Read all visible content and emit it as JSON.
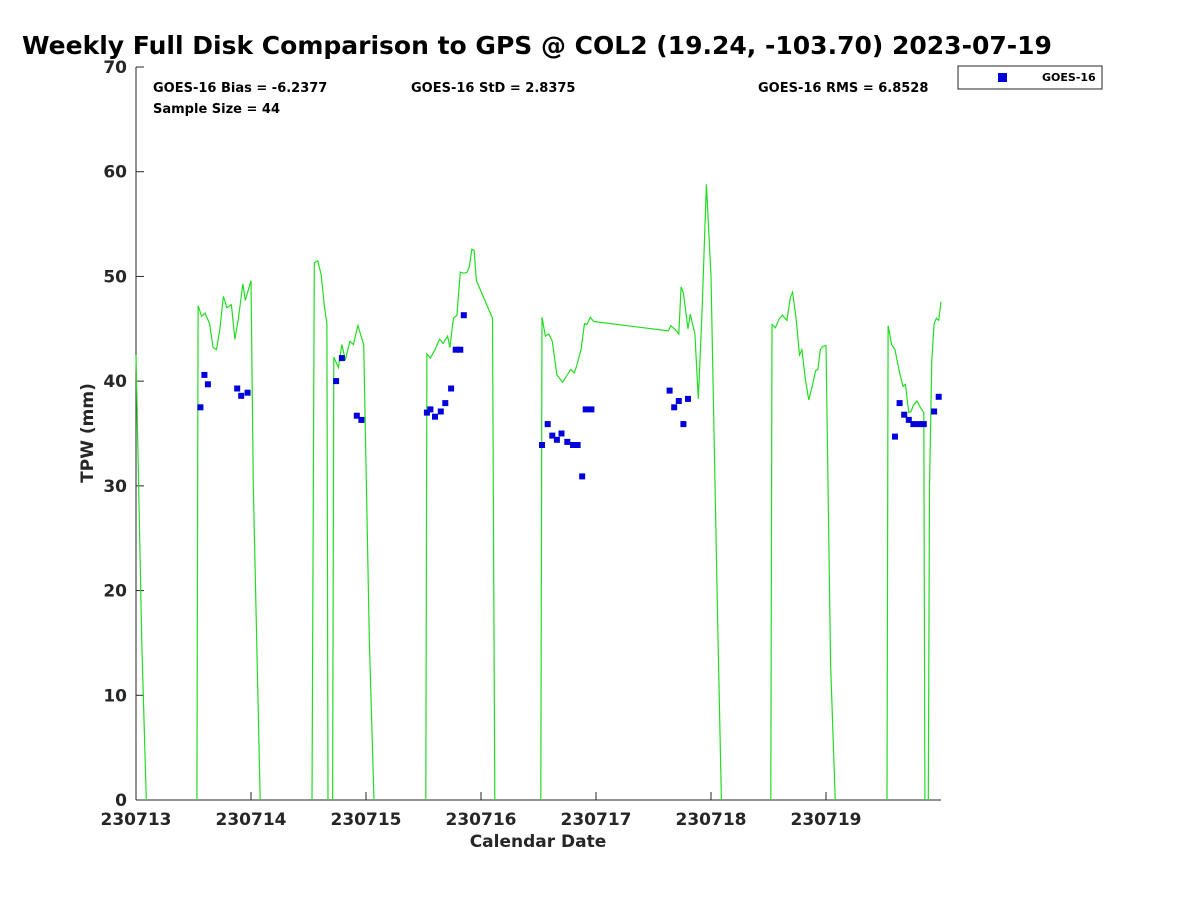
{
  "chart_data": {
    "type": "scatter",
    "title": "Weekly Full Disk Comparison to GPS @ COL2 (19.24, -103.70) 2023-07-19",
    "xlabel": "Calendar Date",
    "ylabel": "TPW (mm)",
    "xlim": [
      "230713",
      "230720"
    ],
    "ylim": [
      0,
      70
    ],
    "yticks": [
      0,
      10,
      20,
      30,
      40,
      50,
      60,
      70
    ],
    "xtick_labels": [
      "230713",
      "230714",
      "230715",
      "230716",
      "230717",
      "230718",
      "230719"
    ],
    "grid": false,
    "legend": {
      "placement": "top-right outside",
      "entries": [
        "GOES-16"
      ]
    },
    "stats": {
      "bias": "GOES-16 Bias = -6.2377",
      "std": "GOES-16 StD = 2.8375",
      "rms": "GOES-16 RMS = 6.8528",
      "sample": "Sample Size = 44"
    },
    "colors": {
      "goes": "#0000dd",
      "gps": "#22dd22"
    },
    "series": [
      {
        "name": "GOES-16",
        "kind": "markers",
        "points": [
          [
            0.56,
            37.5
          ],
          [
            0.595,
            40.6
          ],
          [
            0.625,
            39.7
          ],
          [
            0.88,
            39.3
          ],
          [
            0.915,
            38.6
          ],
          [
            0.97,
            38.9
          ],
          [
            1.74,
            40.0
          ],
          [
            1.79,
            42.2
          ],
          [
            1.92,
            36.7
          ],
          [
            1.96,
            36.3
          ],
          [
            2.53,
            37.0
          ],
          [
            2.56,
            37.3
          ],
          [
            2.6,
            36.6
          ],
          [
            2.65,
            37.1
          ],
          [
            2.69,
            37.9
          ],
          [
            2.74,
            39.3
          ],
          [
            2.78,
            43.0
          ],
          [
            2.82,
            43.0
          ],
          [
            2.85,
            46.3
          ],
          [
            3.53,
            33.9
          ],
          [
            3.58,
            35.9
          ],
          [
            3.62,
            34.8
          ],
          [
            3.66,
            34.4
          ],
          [
            3.7,
            35.0
          ],
          [
            3.75,
            34.2
          ],
          [
            3.8,
            33.9
          ],
          [
            3.84,
            33.9
          ],
          [
            3.88,
            30.9
          ],
          [
            3.91,
            37.3
          ],
          [
            3.96,
            37.3
          ],
          [
            4.64,
            39.1
          ],
          [
            4.68,
            37.5
          ],
          [
            4.72,
            38.1
          ],
          [
            4.76,
            35.9
          ],
          [
            4.8,
            38.3
          ],
          [
            6.6,
            34.7
          ],
          [
            6.64,
            37.9
          ],
          [
            6.68,
            36.8
          ],
          [
            6.72,
            36.3
          ],
          [
            6.76,
            35.9
          ],
          [
            6.81,
            35.9
          ],
          [
            6.85,
            35.9
          ],
          [
            6.94,
            37.1
          ],
          [
            6.98,
            38.5
          ]
        ]
      },
      {
        "name": "GPS",
        "kind": "line",
        "segments": [
          [
            [
              0.0,
              42.5
            ],
            [
              0.05,
              15.0
            ],
            [
              0.09,
              0.0
            ]
          ],
          [
            [
              0.53,
              0.0
            ],
            [
              0.54,
              47.2
            ],
            [
              0.57,
              46.2
            ],
            [
              0.6,
              46.5
            ],
            [
              0.64,
              45.5
            ],
            [
              0.67,
              43.2
            ],
            [
              0.7,
              43.0
            ],
            [
              0.73,
              45.0
            ],
            [
              0.76,
              48.1
            ],
            [
              0.79,
              47.0
            ],
            [
              0.83,
              47.3
            ],
            [
              0.86,
              44.0
            ],
            [
              0.89,
              46.0
            ],
            [
              0.93,
              49.3
            ],
            [
              0.95,
              47.7
            ],
            [
              1.0,
              49.6
            ],
            [
              1.02,
              30.0
            ],
            [
              1.08,
              0.0
            ]
          ],
          [
            [
              1.53,
              0.0
            ],
            [
              1.55,
              51.3
            ],
            [
              1.58,
              51.5
            ],
            [
              1.61,
              50.2
            ],
            [
              1.64,
              47.0
            ],
            [
              1.66,
              45.5
            ],
            [
              1.67,
              0.0
            ]
          ],
          [
            [
              1.71,
              0.0
            ],
            [
              1.72,
              42.3
            ],
            [
              1.76,
              41.3
            ],
            [
              1.79,
              43.5
            ],
            [
              1.82,
              42.0
            ],
            [
              1.86,
              43.8
            ],
            [
              1.89,
              43.5
            ],
            [
              1.93,
              45.3
            ],
            [
              1.96,
              44.2
            ],
            [
              1.98,
              43.5
            ],
            [
              2.03,
              15.0
            ],
            [
              2.07,
              0.0
            ]
          ],
          [
            [
              2.52,
              0.0
            ],
            [
              2.53,
              42.6
            ],
            [
              2.56,
              42.2
            ],
            [
              2.6,
              43.0
            ],
            [
              2.64,
              44.0
            ],
            [
              2.67,
              43.6
            ],
            [
              2.71,
              44.3
            ],
            [
              2.73,
              43.2
            ],
            [
              2.76,
              46.0
            ],
            [
              2.79,
              46.3
            ],
            [
              2.82,
              50.4
            ],
            [
              2.85,
              50.3
            ],
            [
              2.88,
              50.4
            ],
            [
              2.9,
              51.0
            ],
            [
              2.92,
              52.6
            ],
            [
              2.94,
              52.5
            ],
            [
              2.96,
              49.6
            ],
            [
              3.1,
              46.0
            ],
            [
              3.12,
              0.0
            ]
          ],
          [
            [
              3.52,
              0.0
            ],
            [
              3.53,
              46.1
            ],
            [
              3.56,
              44.3
            ],
            [
              3.59,
              44.5
            ],
            [
              3.62,
              43.8
            ],
            [
              3.66,
              40.6
            ],
            [
              3.71,
              39.9
            ],
            [
              3.75,
              40.6
            ],
            [
              3.78,
              41.1
            ],
            [
              3.81,
              40.8
            ],
            [
              3.83,
              41.4
            ],
            [
              3.87,
              43.0
            ],
            [
              3.9,
              45.5
            ],
            [
              3.92,
              45.4
            ],
            [
              3.95,
              46.1
            ],
            [
              3.98,
              45.7
            ],
            [
              4.63,
              44.8
            ],
            [
              4.65,
              45.3
            ],
            [
              4.7,
              44.8
            ],
            [
              4.72,
              44.5
            ],
            [
              4.74,
              49.0
            ],
            [
              4.76,
              48.4
            ],
            [
              4.8,
              45.0
            ],
            [
              4.82,
              46.4
            ],
            [
              4.86,
              44.5
            ],
            [
              4.89,
              38.3
            ],
            [
              4.92,
              46.0
            ],
            [
              4.96,
              58.8
            ],
            [
              5.0,
              50.0
            ],
            [
              5.06,
              16.0
            ],
            [
              5.09,
              0.0
            ]
          ],
          [
            [
              5.52,
              0.0
            ],
            [
              5.53,
              45.4
            ],
            [
              5.56,
              45.1
            ],
            [
              5.59,
              45.9
            ],
            [
              5.62,
              46.3
            ],
            [
              5.66,
              45.8
            ],
            [
              5.69,
              48.0
            ],
            [
              5.71,
              48.5
            ],
            [
              5.74,
              46.0
            ],
            [
              5.77,
              42.5
            ],
            [
              5.79,
              43.0
            ],
            [
              5.82,
              40.2
            ],
            [
              5.85,
              38.2
            ],
            [
              5.88,
              39.5
            ],
            [
              5.91,
              41.0
            ],
            [
              5.93,
              41.1
            ],
            [
              5.95,
              43.0
            ],
            [
              5.97,
              43.3
            ],
            [
              6.0,
              43.4
            ],
            [
              6.04,
              13.0
            ],
            [
              6.08,
              0.0
            ]
          ],
          [
            [
              6.53,
              0.0
            ],
            [
              6.54,
              45.3
            ],
            [
              6.57,
              43.5
            ],
            [
              6.6,
              43.0
            ],
            [
              6.64,
              40.8
            ],
            [
              6.67,
              39.5
            ],
            [
              6.69,
              39.7
            ],
            [
              6.72,
              37.0
            ],
            [
              6.74,
              37.1
            ],
            [
              6.76,
              37.7
            ],
            [
              6.79,
              38.1
            ],
            [
              6.82,
              37.5
            ],
            [
              6.85,
              37.0
            ],
            [
              6.86,
              0.0
            ]
          ],
          [
            [
              6.89,
              0.0
            ],
            [
              6.9,
              30.0
            ],
            [
              6.92,
              42.0
            ],
            [
              6.94,
              45.5
            ],
            [
              6.96,
              46.0
            ],
            [
              6.98,
              45.8
            ],
            [
              7.0,
              47.6
            ]
          ]
        ]
      }
    ]
  }
}
